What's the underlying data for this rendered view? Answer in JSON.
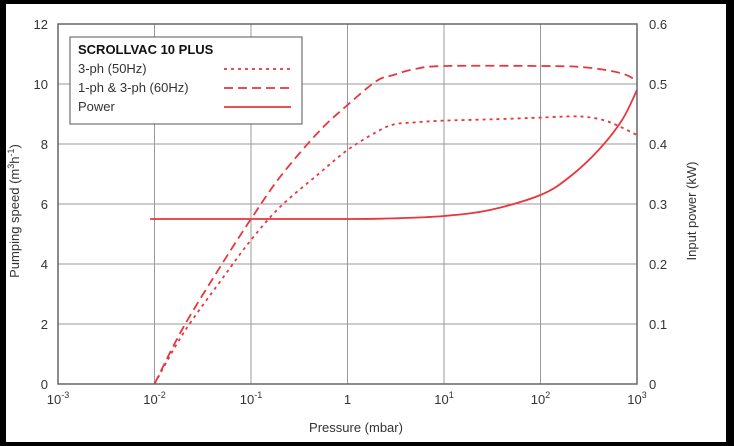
{
  "chart_data": {
    "type": "line",
    "title": "SCROLLVAC 10 PLUS",
    "xlabel": "Pressure (mbar)",
    "ylabel": "Pumping speed (m3h-1)",
    "ylabel_parts": [
      "Pumping speed (m",
      "3",
      "h",
      "-1",
      ")"
    ],
    "y2label": "Input power (kW)",
    "xscale": "log",
    "xlim": [
      0.001,
      1000
    ],
    "ylim": [
      0,
      12
    ],
    "y2lim": [
      0,
      0.6
    ],
    "x_ticks": [
      {
        "value": 0.001,
        "base": "10",
        "exp": "-3"
      },
      {
        "value": 0.01,
        "base": "10",
        "exp": "-2"
      },
      {
        "value": 0.1,
        "base": "10",
        "exp": "-1"
      },
      {
        "value": 1,
        "base": "1",
        "exp": ""
      },
      {
        "value": 10,
        "base": "10",
        "exp": "1"
      },
      {
        "value": 100,
        "base": "10",
        "exp": "2"
      },
      {
        "value": 1000,
        "base": "10",
        "exp": "3"
      }
    ],
    "y_ticks": [
      "0",
      "2",
      "4",
      "6",
      "8",
      "10",
      "12"
    ],
    "y2_ticks": [
      "0",
      "0.1",
      "0.2",
      "0.3",
      "0.4",
      "0.5",
      "0.6"
    ],
    "grid": true,
    "legend_position": "top-left",
    "line_color": "#e8363d",
    "series": [
      {
        "name": "3-ph (50Hz)",
        "style": "dotted",
        "axis": "left",
        "points": [
          [
            0.01,
            0.0
          ],
          [
            0.02,
            1.7
          ],
          [
            0.05,
            3.5
          ],
          [
            0.1,
            4.8
          ],
          [
            0.2,
            5.9
          ],
          [
            0.5,
            7.0
          ],
          [
            1,
            7.8
          ],
          [
            2,
            8.4
          ],
          [
            3,
            8.65
          ],
          [
            5,
            8.72
          ],
          [
            10,
            8.78
          ],
          [
            30,
            8.82
          ],
          [
            100,
            8.88
          ],
          [
            200,
            8.92
          ],
          [
            300,
            8.9
          ],
          [
            500,
            8.75
          ],
          [
            1000,
            8.3
          ]
        ]
      },
      {
        "name": "1-ph & 3-ph (60Hz)",
        "style": "dashed",
        "axis": "left",
        "points": [
          [
            0.01,
            0.0
          ],
          [
            0.02,
            1.9
          ],
          [
            0.05,
            4.0
          ],
          [
            0.1,
            5.5
          ],
          [
            0.2,
            6.9
          ],
          [
            0.5,
            8.4
          ],
          [
            1,
            9.3
          ],
          [
            2,
            10.1
          ],
          [
            3,
            10.3
          ],
          [
            5,
            10.5
          ],
          [
            10,
            10.6
          ],
          [
            100,
            10.6
          ],
          [
            300,
            10.55
          ],
          [
            700,
            10.35
          ],
          [
            1000,
            10.1
          ]
        ]
      },
      {
        "name": "Power",
        "style": "solid",
        "axis": "right",
        "points": [
          [
            0.009,
            0.275
          ],
          [
            0.1,
            0.275
          ],
          [
            1,
            0.275
          ],
          [
            3,
            0.276
          ],
          [
            10,
            0.28
          ],
          [
            30,
            0.29
          ],
          [
            100,
            0.315
          ],
          [
            200,
            0.345
          ],
          [
            400,
            0.39
          ],
          [
            700,
            0.44
          ],
          [
            1000,
            0.49
          ]
        ]
      }
    ]
  }
}
